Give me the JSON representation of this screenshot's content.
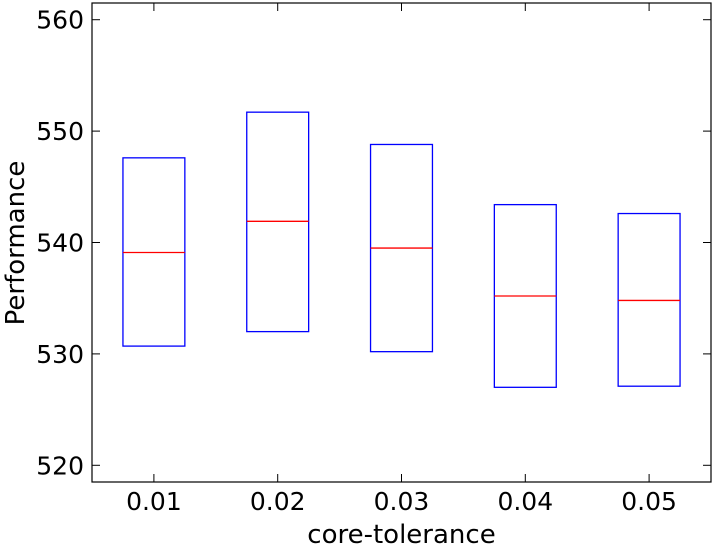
{
  "chart_data": {
    "type": "box",
    "title": "",
    "xlabel": "core-tolerance",
    "ylabel": "Performance",
    "categories": [
      "0.01",
      "0.02",
      "0.03",
      "0.04",
      "0.05"
    ],
    "boxes": [
      {
        "category": "0.01",
        "q1": 530.7,
        "median": 539.1,
        "q3": 547.6
      },
      {
        "category": "0.02",
        "q1": 532.0,
        "median": 541.9,
        "q3": 551.7
      },
      {
        "category": "0.03",
        "q1": 530.2,
        "median": 539.5,
        "q3": 548.8
      },
      {
        "category": "0.04",
        "q1": 527.0,
        "median": 535.2,
        "q3": 543.4
      },
      {
        "category": "0.05",
        "q1": 527.1,
        "median": 534.8,
        "q3": 542.6
      }
    ],
    "ylim": [
      518.5,
      561.5
    ],
    "yticks": [
      520,
      530,
      540,
      550,
      560
    ],
    "grid": false,
    "colors": {
      "box": "#0000ff",
      "median": "#ff0000",
      "axis": "#000000"
    }
  }
}
